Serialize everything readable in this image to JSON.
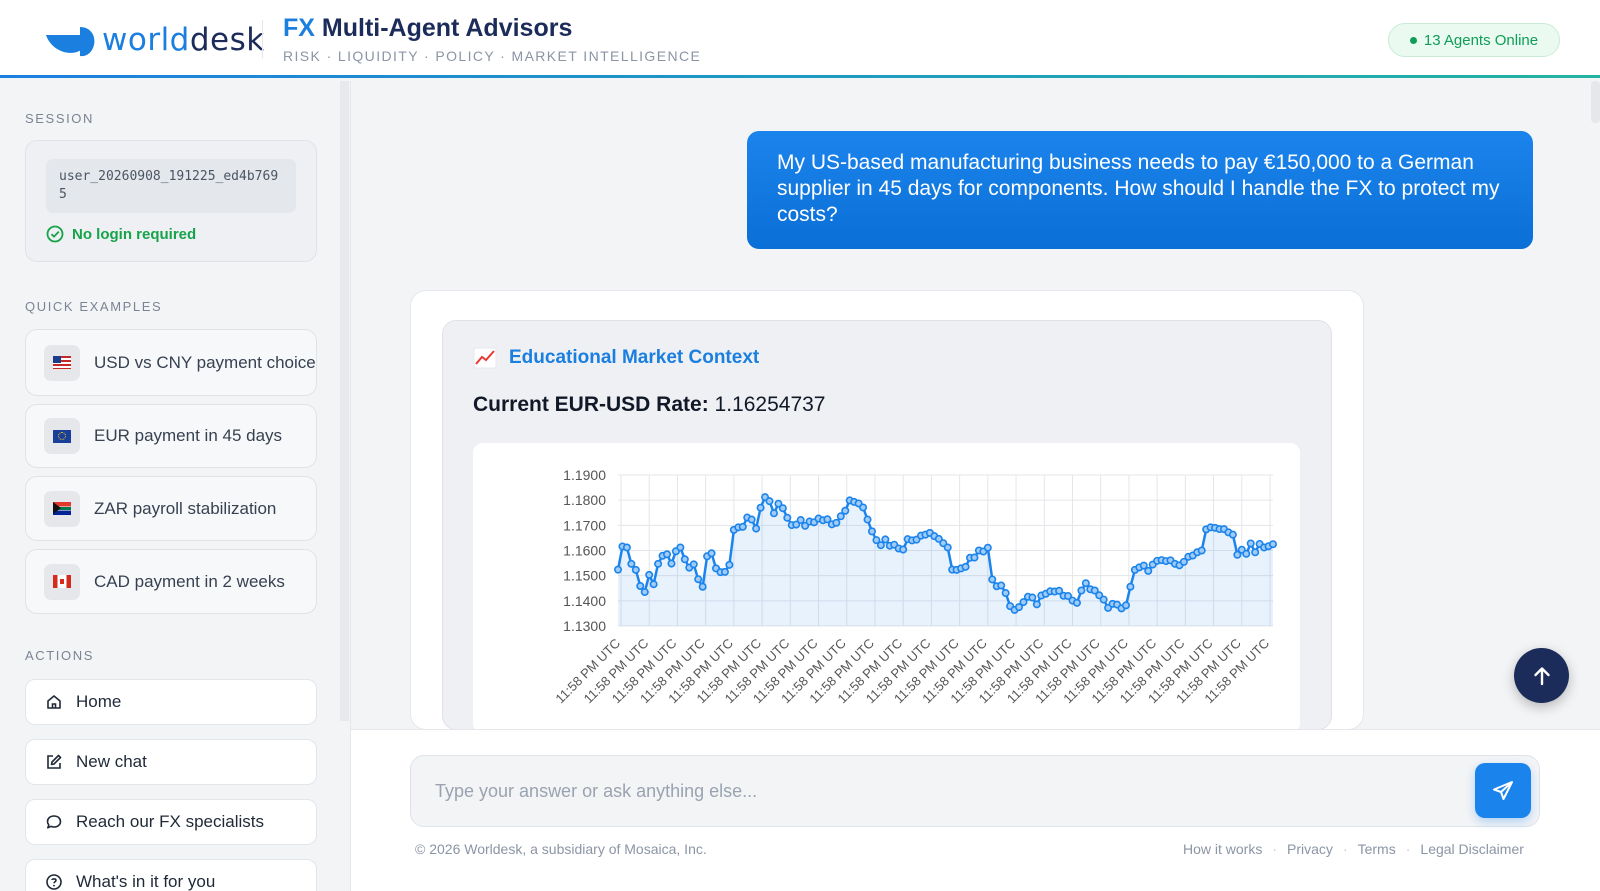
{
  "header": {
    "logo_prefix": "world",
    "logo_suffix": "desk",
    "title_accent": "FX",
    "title_rest": " Multi-Agent Advisors",
    "subtitle": "RISK · LIQUIDITY · POLICY · MARKET INTELLIGENCE",
    "agents_status": "13 Agents Online"
  },
  "sidebar": {
    "session_heading": "SESSION",
    "session_id": "user_20260908_191225_ed4b7695",
    "no_login": "No login required",
    "examples_heading": "QUICK EXAMPLES",
    "examples": [
      {
        "label": "USD vs CNY payment choice",
        "flag": "us-flag"
      },
      {
        "label": "EUR payment in 45 days",
        "flag": "eu-flag"
      },
      {
        "label": "ZAR payroll stabilization",
        "flag": "za-flag"
      },
      {
        "label": "CAD payment in 2 weeks",
        "flag": "ca-flag"
      }
    ],
    "actions_heading": "ACTIONS",
    "actions": [
      {
        "label": "Home",
        "icon": "home-icon"
      },
      {
        "label": "New chat",
        "icon": "edit-icon"
      },
      {
        "label": "Reach our FX specialists",
        "icon": "chat-bubble-icon"
      },
      {
        "label": "What's in it for you",
        "icon": "help-circle-icon"
      }
    ]
  },
  "chat": {
    "user_message": "My US-based manufacturing business needs to pay €150,000 to a German supplier in 45 days for components. How should I handle the FX to protect my costs?",
    "context_title": "Educational Market Context",
    "rate_label": "Current EUR-USD Rate:",
    "rate_value": "1.16254737"
  },
  "composer": {
    "placeholder": "Type your answer or ask anything else..."
  },
  "footer": {
    "copyright": "© 2026 Worldesk, a subsidiary of Mosaica, Inc.",
    "links": [
      "How it works",
      "Privacy",
      "Terms",
      "Legal Disclaimer"
    ]
  },
  "colors": {
    "accent": "#1b84ec",
    "navy": "#1c2c5a",
    "success": "#0f9d58"
  },
  "chart_data": {
    "type": "area",
    "ylim": [
      1.13,
      1.19
    ],
    "yticks": [
      "1.1900",
      "1.1800",
      "1.1700",
      "1.1600",
      "1.1500",
      "1.1400",
      "1.1300"
    ],
    "x_tick_label": "11:58 PM UTC",
    "x_tick_count": 24,
    "grid": true,
    "values": [
      1.1524,
      1.1616,
      1.1612,
      1.1547,
      1.1523,
      1.1459,
      1.1435,
      1.1503,
      1.1466,
      1.1547,
      1.1579,
      1.1585,
      1.1548,
      1.1597,
      1.1612,
      1.1565,
      1.1532,
      1.1545,
      1.1486,
      1.1456,
      1.1577,
      1.1589,
      1.1529,
      1.1514,
      1.1515,
      1.1543,
      1.1682,
      1.1692,
      1.1694,
      1.1731,
      1.1723,
      1.1687,
      1.177,
      1.1812,
      1.1796,
      1.1748,
      1.1786,
      1.1768,
      1.173,
      1.1701,
      1.1703,
      1.1721,
      1.1698,
      1.1715,
      1.1712,
      1.1727,
      1.172,
      1.1724,
      1.1704,
      1.171,
      1.1736,
      1.1758,
      1.1799,
      1.1793,
      1.1787,
      1.1771,
      1.1723,
      1.1676,
      1.1641,
      1.1621,
      1.1644,
      1.1619,
      1.1623,
      1.1608,
      1.1604,
      1.1645,
      1.164,
      1.1643,
      1.1659,
      1.1663,
      1.167,
      1.1657,
      1.1646,
      1.1629,
      1.1612,
      1.1524,
      1.1523,
      1.1529,
      1.1535,
      1.1571,
      1.1572,
      1.16,
      1.1596,
      1.1611,
      1.1485,
      1.1458,
      1.1461,
      1.1431,
      1.1379,
      1.1364,
      1.1375,
      1.1395,
      1.1416,
      1.1413,
      1.1386,
      1.1421,
      1.1428,
      1.1438,
      1.1437,
      1.144,
      1.142,
      1.1419,
      1.1401,
      1.1392,
      1.1441,
      1.147,
      1.1446,
      1.1441,
      1.1422,
      1.1405,
      1.1372,
      1.1388,
      1.1385,
      1.137,
      1.1382,
      1.1456,
      1.1523,
      1.1533,
      1.154,
      1.1519,
      1.1544,
      1.1559,
      1.1562,
      1.1558,
      1.1561,
      1.1547,
      1.1541,
      1.1555,
      1.1575,
      1.158,
      1.1593,
      1.16,
      1.1684,
      1.1692,
      1.169,
      1.1685,
      1.1685,
      1.1672,
      1.1663,
      1.1583,
      1.1603,
      1.1587,
      1.1628,
      1.1593,
      1.1626,
      1.1612,
      1.1617,
      1.1625
    ]
  }
}
